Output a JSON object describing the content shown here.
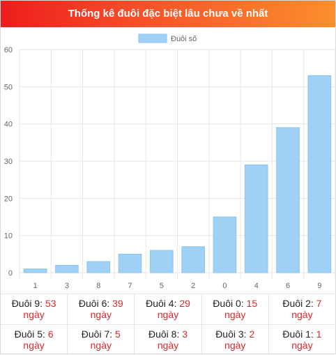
{
  "header": {
    "title": "Thống kê đuôi đặc biệt lâu chưa về nhất"
  },
  "chart_data": {
    "type": "bar",
    "categories": [
      "1",
      "3",
      "8",
      "7",
      "5",
      "2",
      "0",
      "4",
      "6",
      "9"
    ],
    "series": [
      {
        "name": "Đuôi số",
        "values": [
          1,
          2,
          3,
          5,
          6,
          7,
          15,
          29,
          39,
          53
        ]
      }
    ],
    "ylim": [
      0,
      60
    ],
    "yticks": [
      "0",
      "10",
      "20",
      "30",
      "40",
      "50",
      "60"
    ],
    "legend": "top-center",
    "grid": true,
    "colors": {
      "bar": "#9fd0f5",
      "bar_border": "#8cc3ef"
    }
  },
  "table": {
    "unit": "ngày",
    "rows": [
      [
        {
          "label": "Đuôi 9:",
          "value": "53"
        },
        {
          "label": "Đuôi 6:",
          "value": "39"
        },
        {
          "label": "Đuôi 4:",
          "value": "29"
        },
        {
          "label": "Đuôi 0:",
          "value": "15"
        },
        {
          "label": "Đuôi 2:",
          "value": "7"
        }
      ],
      [
        {
          "label": "Đuôi 5:",
          "value": "6"
        },
        {
          "label": "Đuôi 7:",
          "value": "5"
        },
        {
          "label": "Đuôi 8:",
          "value": "3"
        },
        {
          "label": "Đuôi 3:",
          "value": "2"
        },
        {
          "label": "Đuôi 1:",
          "value": "1"
        }
      ]
    ]
  }
}
